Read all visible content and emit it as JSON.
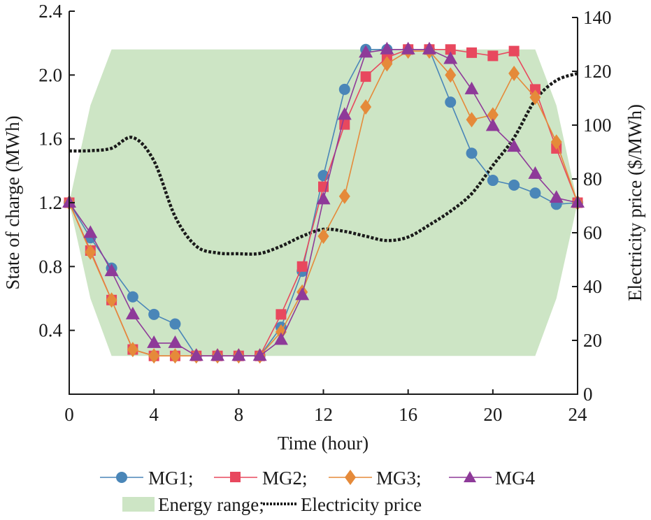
{
  "chart_data": {
    "type": "line",
    "title": "",
    "xlabel": "Time (hour)",
    "ylabel": "State of charge (MWh)",
    "y2label": "Electricity price ($/MWh)",
    "xlim": [
      0,
      24
    ],
    "ylim": [
      0,
      2.4
    ],
    "y2lim": [
      0,
      140
    ],
    "xticks": [
      "0",
      "4",
      "8",
      "12",
      "16",
      "20",
      "24"
    ],
    "yticks": [
      "0.4",
      "0.8",
      "1.2",
      "1.6",
      "2.0",
      "2.4"
    ],
    "y2ticks": [
      "0",
      "20",
      "40",
      "60",
      "80",
      "100",
      "120",
      "140"
    ],
    "grid": false,
    "legend_position": "bottom",
    "x": [
      0,
      1,
      2,
      3,
      4,
      5,
      6,
      7,
      8,
      9,
      10,
      11,
      12,
      13,
      14,
      15,
      16,
      17,
      18,
      19,
      20,
      21,
      22,
      23,
      24
    ],
    "series": [
      {
        "name": "MG1",
        "marker": "circle",
        "color": "#4a86b8",
        "axis": "left",
        "values": [
          1.2,
          0.98,
          0.79,
          0.61,
          0.5,
          0.44,
          0.24,
          0.24,
          0.24,
          0.24,
          0.42,
          0.77,
          1.37,
          1.91,
          2.16,
          2.16,
          2.16,
          2.16,
          1.83,
          1.51,
          1.34,
          1.31,
          1.26,
          1.19,
          1.2
        ]
      },
      {
        "name": "MG2",
        "marker": "square",
        "color": "#e8485e",
        "axis": "left",
        "values": [
          1.2,
          0.9,
          0.59,
          0.28,
          0.24,
          0.24,
          0.24,
          0.24,
          0.24,
          0.24,
          0.5,
          0.8,
          1.3,
          1.69,
          1.99,
          2.11,
          2.16,
          2.16,
          2.16,
          2.14,
          2.12,
          2.15,
          1.91,
          1.54,
          1.2
        ]
      },
      {
        "name": "MG3",
        "marker": "diamond",
        "color": "#e58a3a",
        "axis": "left",
        "values": [
          1.2,
          0.89,
          0.59,
          0.28,
          0.24,
          0.24,
          0.24,
          0.24,
          0.24,
          0.24,
          0.39,
          0.64,
          0.99,
          1.24,
          1.8,
          2.07,
          2.15,
          2.15,
          2.0,
          1.72,
          1.75,
          2.01,
          1.86,
          1.58,
          1.2
        ]
      },
      {
        "name": "MG4",
        "marker": "triangle",
        "color": "#8e3a99",
        "axis": "left",
        "values": [
          1.2,
          1.01,
          0.77,
          0.5,
          0.32,
          0.32,
          0.24,
          0.24,
          0.24,
          0.24,
          0.34,
          0.62,
          1.22,
          1.75,
          2.14,
          2.16,
          2.16,
          2.16,
          2.1,
          1.91,
          1.68,
          1.55,
          1.38,
          1.23,
          1.2
        ]
      }
    ],
    "energy_range": {
      "name": "Energy range",
      "color": "#cde5c5",
      "x": [
        0,
        1,
        2,
        22,
        23,
        24
      ],
      "upper": [
        1.2,
        1.81,
        2.16,
        2.16,
        1.81,
        1.2
      ],
      "lower": [
        1.2,
        0.6,
        0.24,
        0.24,
        0.6,
        1.2
      ]
    },
    "price": {
      "name": "Electricity price",
      "color": "#1a1a1a",
      "axis": "right",
      "values": [
        90.4,
        90.5,
        91.4,
        95.4,
        86.7,
        66,
        55,
        52.5,
        52.2,
        52.3,
        55,
        58.7,
        61.3,
        60.5,
        58.7,
        57.1,
        58.4,
        62.9,
        68,
        74.5,
        85,
        95.3,
        109.3,
        116.6,
        119.2
      ]
    },
    "legend": {
      "row1": [
        "MG1;",
        "MG2;",
        "MG3;",
        "MG4"
      ],
      "row2": [
        "Energy range;",
        "Electricity price"
      ]
    }
  }
}
